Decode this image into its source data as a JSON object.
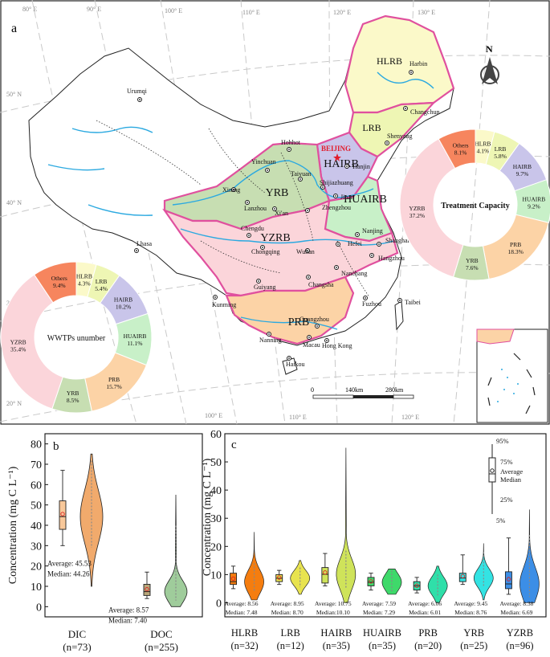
{
  "panel_a": {
    "label": "a",
    "basin_labels": [
      "HLRB",
      "LRB",
      "HAIRB",
      "YRB",
      "HUAIRB",
      "YZRB",
      "PRB"
    ],
    "cities": [
      "Urumqi",
      "Harbin",
      "Changchun",
      "Shenyang",
      "Hohhot",
      "BEIJING",
      "Tianjin",
      "Yinchuan",
      "Taiyuan",
      "Shijiazhuang",
      "Xining",
      "Lanzhou",
      "Xi'an",
      "Jinan",
      "Zhengzhou",
      "Lhasa",
      "Chengdu",
      "Chongqing",
      "Wuhan",
      "Hefei",
      "Nanjing",
      "Shanghai",
      "Hangzhou",
      "Nanchang",
      "Changsha",
      "Guiyang",
      "Kunming",
      "Fuzhou",
      "Taibei",
      "Nanning",
      "Guangzhou",
      "Macau",
      "Hong Kong",
      "Haikou"
    ],
    "longitude_labels": [
      "80° E",
      "90° E",
      "100° E",
      "110° E",
      "120° E",
      "130° E"
    ],
    "latitude_labels": [
      "50° N",
      "40° N",
      "30° N",
      "20° N"
    ],
    "bottom_lon_labels": [
      "100° E",
      "110° E",
      "120° E"
    ],
    "north_label": "N",
    "scale": [
      "0",
      "140km",
      "280km"
    ]
  },
  "chart_data": [
    {
      "type": "pie",
      "title": "Treatment Capacity",
      "slices": [
        {
          "label": "HLRB",
          "value": 4.1,
          "color": "#fbf9c9"
        },
        {
          "label": "LRB",
          "value": 5.8,
          "color": "#eef6b4"
        },
        {
          "label": "HAIRB",
          "value": 9.7,
          "color": "#c9c5ea"
        },
        {
          "label": "HUAIRB",
          "value": 9.2,
          "color": "#c8f0c8"
        },
        {
          "label": "PRB",
          "value": 18.3,
          "color": "#fcd3a6"
        },
        {
          "label": "YRB",
          "value": 7.6,
          "color": "#c7deb2"
        },
        {
          "label": "YZRB",
          "value": 37.2,
          "color": "#fbd5da"
        },
        {
          "label": "Others",
          "value": 8.1,
          "color": "#f6855e"
        }
      ],
      "slice_texts": [
        "4.1%",
        "5.8%",
        "9.7%",
        "9.2%",
        "18.3%",
        "7.6%",
        "37.2%",
        "8.1%"
      ]
    },
    {
      "type": "pie",
      "title": "WWTPs unumber",
      "slices": [
        {
          "label": "HLRB",
          "value": 4.3,
          "color": "#fbf9c9"
        },
        {
          "label": "LRB",
          "value": 5.4,
          "color": "#eef6b4"
        },
        {
          "label": "HAIRB",
          "value": 10.2,
          "color": "#c9c5ea"
        },
        {
          "label": "HUAIRB",
          "value": 11.1,
          "color": "#c8f0c8"
        },
        {
          "label": "PRB",
          "value": 15.7,
          "color": "#fcd3a6"
        },
        {
          "label": "YRB",
          "value": 8.5,
          "color": "#c7deb2"
        },
        {
          "label": "YZRB",
          "value": 35.4,
          "color": "#fbd5da"
        },
        {
          "label": "Others",
          "value": 9.4,
          "color": "#f6855e"
        }
      ],
      "slice_texts": [
        "4.3%",
        "5.4%",
        "10.2%",
        "11.1%",
        "15.7%",
        "8.5%",
        "35.4%",
        "9.4%"
      ]
    },
    {
      "type": "box-violin",
      "panel": "b",
      "ylabel": "Concentration (mg C L⁻¹)",
      "ylim": [
        -5,
        85
      ],
      "yticks": [
        0,
        10,
        20,
        30,
        40,
        50,
        60,
        70,
        80
      ],
      "groups": [
        {
          "name": "DIC",
          "n_label": "(n=73)",
          "average_text": "Average: 45.53",
          "median_text": "Median: 44.26",
          "average": 45.53,
          "median": 44.26,
          "p5": 30,
          "p25": 38,
          "p75": 52,
          "p95": 67,
          "violin_min": 10,
          "violin_max": 75,
          "box_color": "#f8c89a",
          "violin_color": "#f1aa6c"
        },
        {
          "name": "DOC",
          "n_label": "(n=255)",
          "average_text": "Average: 8.57",
          "median_text": "Median: 7.40",
          "average": 8.57,
          "median": 7.4,
          "p5": 4,
          "p25": 5.5,
          "p75": 11,
          "p95": 17,
          "violin_min": 0,
          "violin_max": 55,
          "box_color": "#b9a77a",
          "violin_color": "#9fcc9b"
        }
      ]
    },
    {
      "type": "box-violin",
      "panel": "c",
      "ylim": [
        -5,
        60
      ],
      "yticks": [
        0,
        10,
        20,
        30,
        40,
        50,
        60
      ],
      "legend_labels": [
        "95%",
        "75%",
        "Average",
        "Median",
        "25%",
        "5%"
      ],
      "groups": [
        {
          "name": "HLRB",
          "n_label": "(n=32)",
          "average_text": "Average: 8.56",
          "median_text": "Median: 7.48",
          "average": 8.56,
          "median": 7.48,
          "p5": 5,
          "p25": 6.5,
          "p75": 10.5,
          "p95": 13,
          "violin_min": 1,
          "violin_max": 25,
          "color": "#f57d0f"
        },
        {
          "name": "LRB",
          "n_label": "(n=12)",
          "average_text": "Average: 8.95",
          "median_text": "Median: 8.70",
          "average": 8.95,
          "median": 8.7,
          "p5": 6.5,
          "p25": 7.5,
          "p75": 10,
          "p95": 11.5,
          "violin_min": 3,
          "violin_max": 15,
          "color": "#e8e34f"
        },
        {
          "name": "HAIRB",
          "n_label": "(n=35)",
          "average_text": "Average: 10.75",
          "median_text": "Median:10.10",
          "average": 10.75,
          "median": 10.1,
          "p5": 6,
          "p25": 7,
          "p75": 12.5,
          "p95": 17.5,
          "violin_min": 0,
          "violin_max": 55,
          "color": "#cfe35a"
        },
        {
          "name": "HUAIRB",
          "n_label": "(n=35)",
          "average_text": "Average: 7.59",
          "median_text": "Median: 7.29",
          "average": 7.59,
          "median": 7.29,
          "p5": 4.5,
          "p25": 6,
          "p75": 9,
          "p95": 10.5,
          "violin_min": 3,
          "violin_max": 12,
          "color": "#3ed96a"
        },
        {
          "name": "PRB",
          "n_label": "(n=20)",
          "average_text": "Average: 6.06",
          "median_text": "Median: 6.01",
          "average": 6.06,
          "median": 6.01,
          "p5": 3.5,
          "p25": 4.5,
          "p75": 7.5,
          "p95": 9,
          "violin_min": 0,
          "violin_max": 13,
          "color": "#2fdfa9"
        },
        {
          "name": "YRB",
          "n_label": "(n=25)",
          "average_text": "Average: 9.45",
          "median_text": "Median: 8.76",
          "average": 9.45,
          "median": 8.76,
          "p5": 6.5,
          "p25": 7.5,
          "p75": 10.5,
          "p95": 17,
          "violin_min": 1,
          "violin_max": 21,
          "color": "#33e3e3"
        },
        {
          "name": "YZRB",
          "n_label": "(n=96)",
          "average_text": "Average: 8.38",
          "median_text": "Median: 6.69",
          "average": 8.38,
          "median": 6.69,
          "p5": 3,
          "p25": 5,
          "p75": 11,
          "p95": 23,
          "violin_min": 0,
          "violin_max": 33,
          "color": "#3c8ee6"
        }
      ]
    }
  ]
}
